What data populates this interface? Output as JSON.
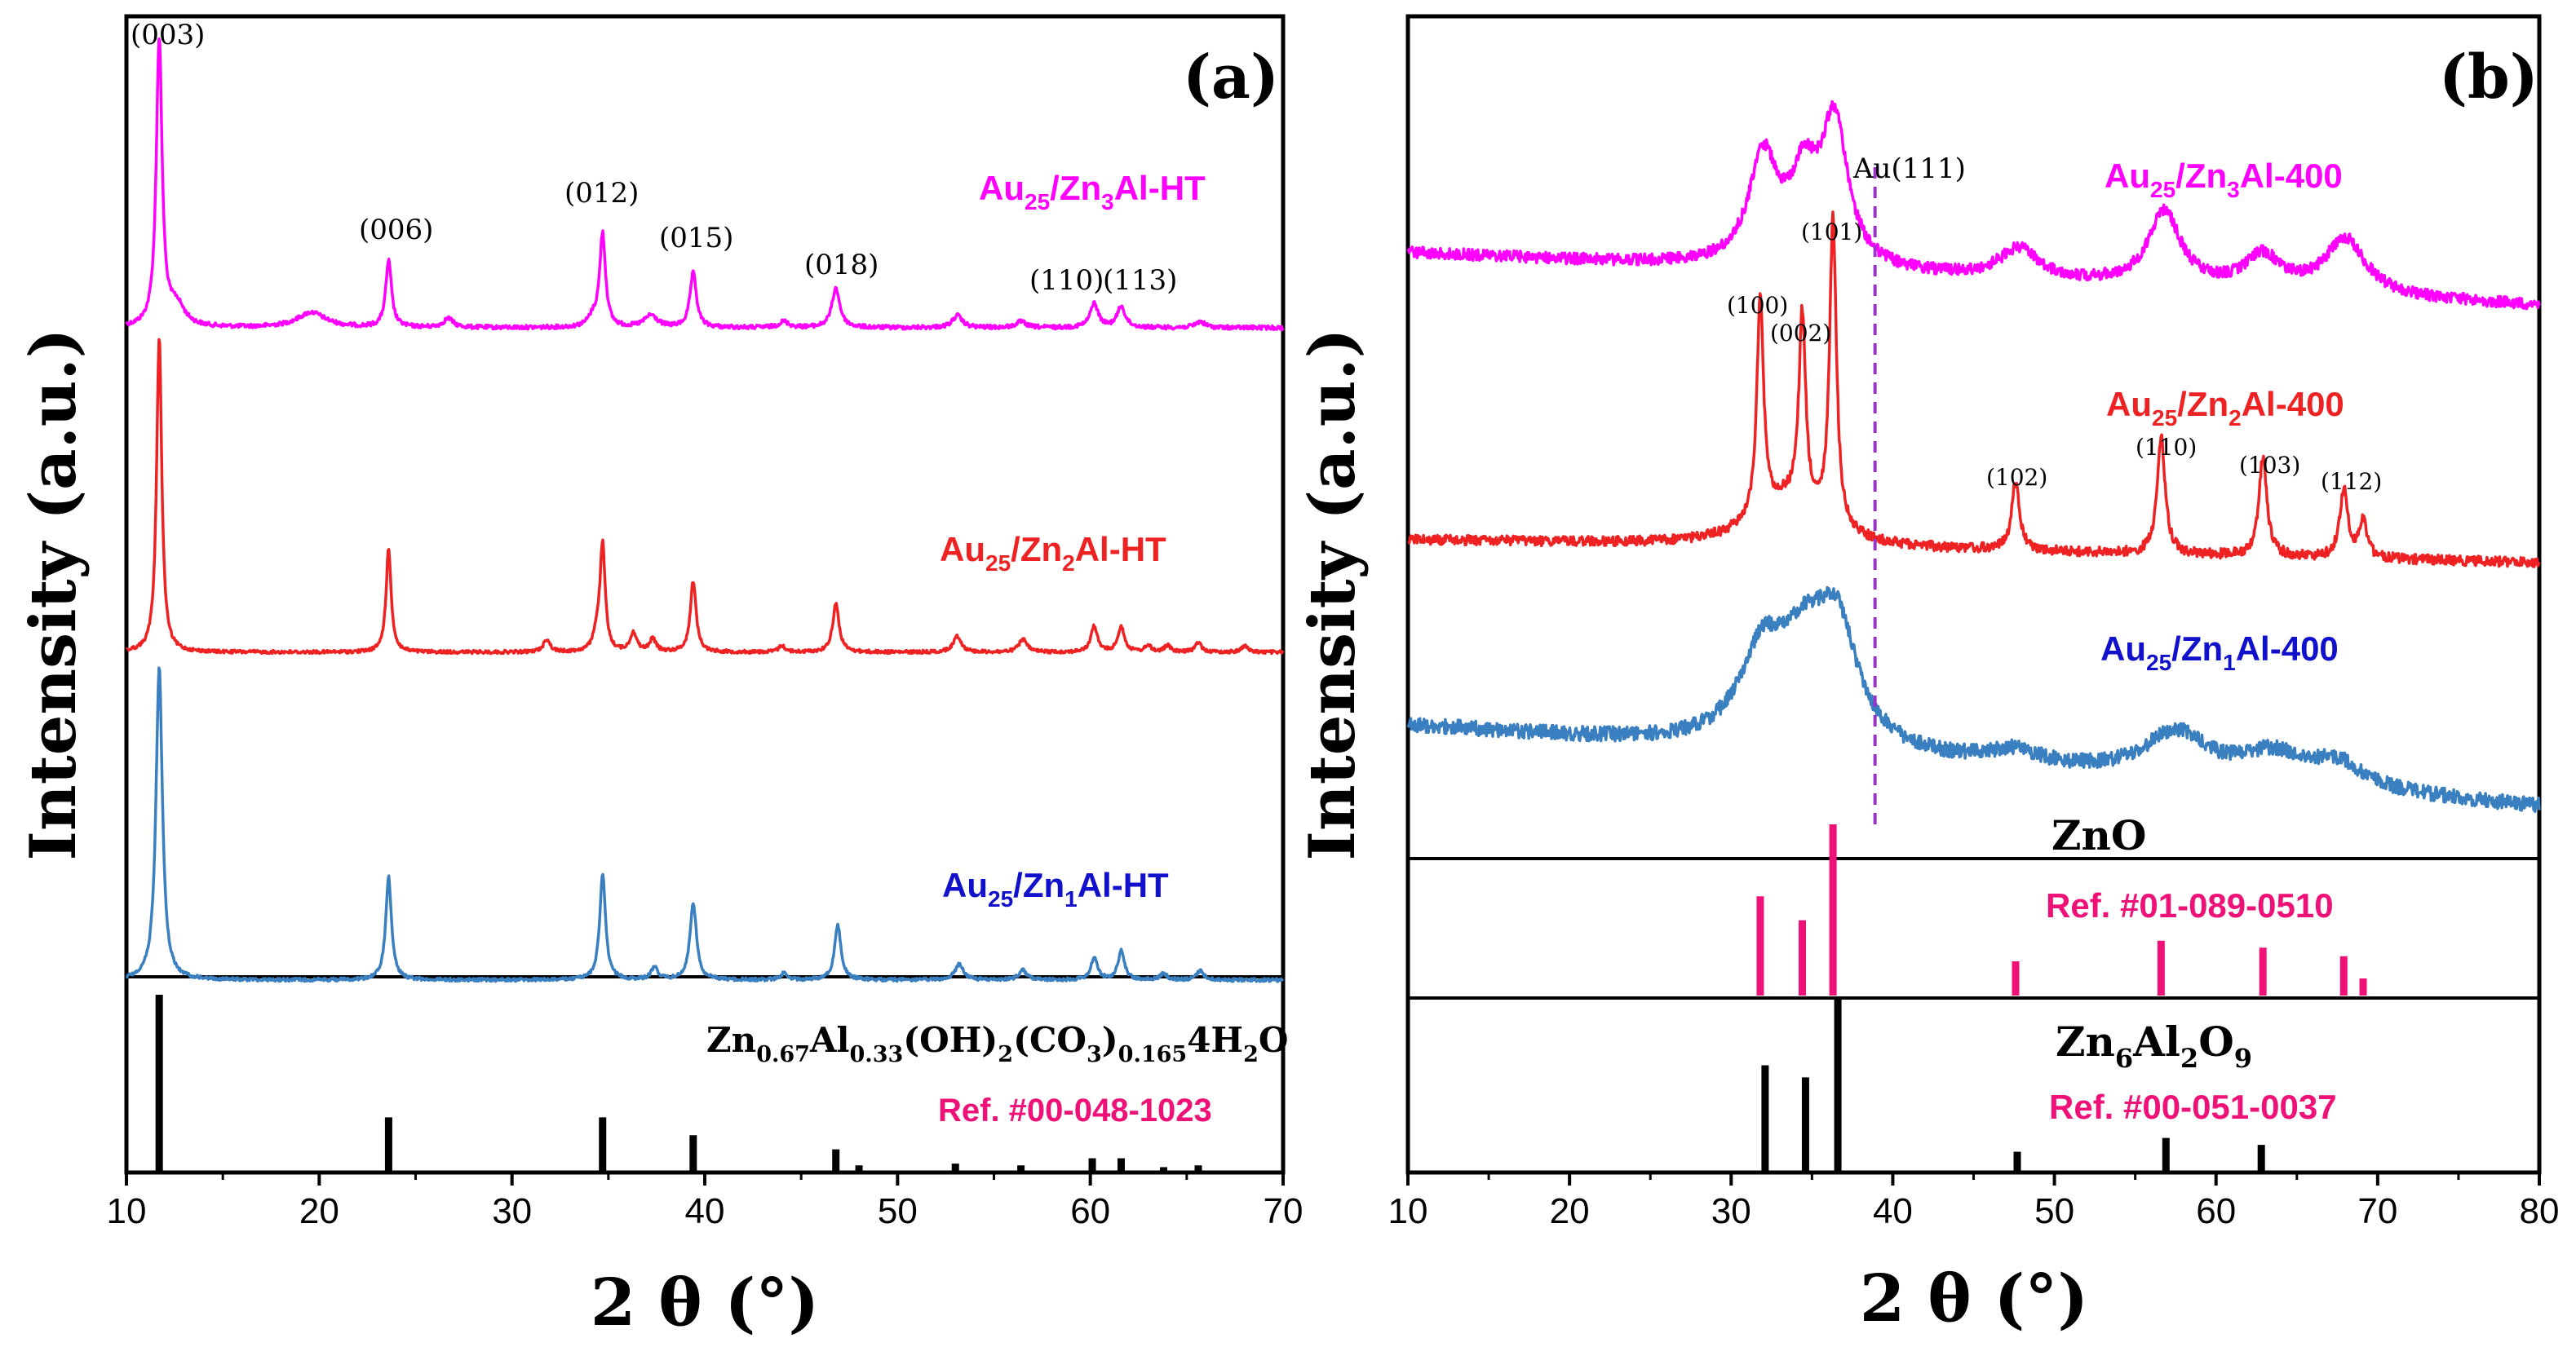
{
  "chart_data": [
    {
      "type": "line",
      "panel": "(a)",
      "xlabel": "2 θ (°)",
      "ylabel": "Intensity (a.u.)",
      "xlim": [
        10,
        70
      ],
      "xticks": [
        10,
        20,
        30,
        40,
        50,
        60,
        70
      ],
      "series": [
        {
          "name": "Au25/Zn3Al-HT",
          "color": "#ff00ff",
          "peaks": [
            {
              "x": 11.7,
              "h": 0.95,
              "w": 0.18
            },
            {
              "x": 12.6,
              "h": 0.07,
              "w": 0.5
            },
            {
              "x": 19.6,
              "h": 0.05,
              "w": 0.9
            },
            {
              "x": 23.6,
              "h": 0.22,
              "w": 0.18
            },
            {
              "x": 26.7,
              "h": 0.03,
              "w": 0.3
            },
            {
              "x": 34.2,
              "h": 0.03,
              "w": 0.3
            },
            {
              "x": 34.7,
              "h": 0.31,
              "w": 0.18
            },
            {
              "x": 37.2,
              "h": 0.04,
              "w": 0.4
            },
            {
              "x": 39.4,
              "h": 0.18,
              "w": 0.2
            },
            {
              "x": 44.1,
              "h": 0.02,
              "w": 0.3
            },
            {
              "x": 46.8,
              "h": 0.13,
              "w": 0.25
            },
            {
              "x": 53.1,
              "h": 0.04,
              "w": 0.3
            },
            {
              "x": 56.4,
              "h": 0.02,
              "w": 0.3
            },
            {
              "x": 60.2,
              "h": 0.08,
              "w": 0.25
            },
            {
              "x": 61.6,
              "h": 0.07,
              "w": 0.25
            },
            {
              "x": 65.7,
              "h": 0.02,
              "w": 0.3
            }
          ]
        },
        {
          "name": "Au25/Zn2Al-HT",
          "color": "#ee2222",
          "peaks": [
            {
              "x": 11.7,
              "h": 0.98,
              "w": 0.16
            },
            {
              "x": 23.6,
              "h": 0.32,
              "w": 0.16
            },
            {
              "x": 31.8,
              "h": 0.04,
              "w": 0.2
            },
            {
              "x": 34.4,
              "h": 0.05,
              "w": 0.2
            },
            {
              "x": 34.7,
              "h": 0.33,
              "w": 0.16
            },
            {
              "x": 36.3,
              "h": 0.06,
              "w": 0.2
            },
            {
              "x": 37.3,
              "h": 0.04,
              "w": 0.2
            },
            {
              "x": 39.4,
              "h": 0.22,
              "w": 0.18
            },
            {
              "x": 44.0,
              "h": 0.02,
              "w": 0.2
            },
            {
              "x": 46.8,
              "h": 0.15,
              "w": 0.2
            },
            {
              "x": 53.1,
              "h": 0.05,
              "w": 0.25
            },
            {
              "x": 56.5,
              "h": 0.04,
              "w": 0.25
            },
            {
              "x": 60.2,
              "h": 0.08,
              "w": 0.2
            },
            {
              "x": 61.6,
              "h": 0.08,
              "w": 0.2
            },
            {
              "x": 63.0,
              "h": 0.02,
              "w": 0.2
            },
            {
              "x": 64.0,
              "h": 0.02,
              "w": 0.2
            },
            {
              "x": 65.6,
              "h": 0.03,
              "w": 0.2
            },
            {
              "x": 68.0,
              "h": 0.02,
              "w": 0.2
            }
          ]
        },
        {
          "name": "Au25/Zn1Al-HT",
          "color": "#3a7fbf",
          "peaks": [
            {
              "x": 11.7,
              "h": 0.97,
              "w": 0.2
            },
            {
              "x": 23.6,
              "h": 0.32,
              "w": 0.18
            },
            {
              "x": 34.7,
              "h": 0.33,
              "w": 0.18
            },
            {
              "x": 37.4,
              "h": 0.04,
              "w": 0.2
            },
            {
              "x": 39.4,
              "h": 0.24,
              "w": 0.2
            },
            {
              "x": 44.1,
              "h": 0.02,
              "w": 0.2
            },
            {
              "x": 46.9,
              "h": 0.17,
              "w": 0.2
            },
            {
              "x": 53.2,
              "h": 0.05,
              "w": 0.25
            },
            {
              "x": 56.5,
              "h": 0.03,
              "w": 0.25
            },
            {
              "x": 60.2,
              "h": 0.07,
              "w": 0.2
            },
            {
              "x": 61.6,
              "h": 0.09,
              "w": 0.2
            },
            {
              "x": 63.8,
              "h": 0.02,
              "w": 0.2
            },
            {
              "x": 65.7,
              "h": 0.03,
              "w": 0.2
            }
          ]
        }
      ],
      "reference": {
        "name": "Zn0.67Al0.33(OH)2(CO3)0.1654H2O",
        "ref": "Ref. #00-048-1023",
        "sticks": [
          {
            "x": 11.7,
            "h": 1.0
          },
          {
            "x": 23.6,
            "h": 0.31
          },
          {
            "x": 34.7,
            "h": 0.31
          },
          {
            "x": 39.4,
            "h": 0.21
          },
          {
            "x": 46.8,
            "h": 0.13
          },
          {
            "x": 48.0,
            "h": 0.04
          },
          {
            "x": 53.0,
            "h": 0.05
          },
          {
            "x": 56.4,
            "h": 0.04
          },
          {
            "x": 60.1,
            "h": 0.08
          },
          {
            "x": 61.6,
            "h": 0.08
          },
          {
            "x": 63.8,
            "h": 0.03
          },
          {
            "x": 65.6,
            "h": 0.04
          }
        ]
      },
      "annotations": [
        "(003)",
        "(006)",
        "(012)",
        "(015)",
        "(018)",
        "(110)",
        "(113)"
      ]
    },
    {
      "type": "line",
      "panel": "(b)",
      "xlabel": "2 θ (°)",
      "ylabel": "Intensity (a.u.)",
      "xlim": [
        10,
        80
      ],
      "xticks": [
        10,
        20,
        30,
        40,
        50,
        60,
        70,
        80
      ],
      "marker_line": {
        "x": 38.9,
        "label": "Au(111)"
      },
      "series": [
        {
          "name": "Au25/Zn3Al-400",
          "color": "#ff00ff",
          "peaks": [
            {
              "x": 32.0,
              "h": 0.57,
              "w": 1.1
            },
            {
              "x": 34.5,
              "h": 0.42,
              "w": 1.0
            },
            {
              "x": 36.4,
              "h": 0.76,
              "w": 1.0
            },
            {
              "x": 47.8,
              "h": 0.16,
              "w": 1.5
            },
            {
              "x": 56.8,
              "h": 0.4,
              "w": 1.2
            },
            {
              "x": 62.9,
              "h": 0.18,
              "w": 1.4
            },
            {
              "x": 68.0,
              "h": 0.3,
              "w": 1.5
            }
          ]
        },
        {
          "name": "Au25/Zn2Al-400",
          "color": "#ee2222",
          "peaks": [
            {
              "x": 31.8,
              "h": 0.7,
              "w": 0.25
            },
            {
              "x": 34.4,
              "h": 0.62,
              "w": 0.25
            },
            {
              "x": 36.3,
              "h": 1.0,
              "w": 0.25
            },
            {
              "x": 33.5,
              "h": 0.15,
              "w": 2.5
            },
            {
              "x": 47.6,
              "h": 0.22,
              "w": 0.3
            },
            {
              "x": 56.6,
              "h": 0.38,
              "w": 0.3
            },
            {
              "x": 62.9,
              "h": 0.32,
              "w": 0.3
            },
            {
              "x": 67.9,
              "h": 0.22,
              "w": 0.3
            },
            {
              "x": 69.1,
              "h": 0.12,
              "w": 0.3
            }
          ]
        },
        {
          "name": "Au25/Zn1Al-400",
          "color": "#3a7fbf",
          "peaks": [
            {
              "x": 32.0,
              "h": 0.45,
              "w": 1.8
            },
            {
              "x": 34.5,
              "h": 0.35,
              "w": 1.5
            },
            {
              "x": 36.5,
              "h": 0.6,
              "w": 1.6
            },
            {
              "x": 47.5,
              "h": 0.07,
              "w": 2.0
            },
            {
              "x": 57.5,
              "h": 0.22,
              "w": 2.4
            },
            {
              "x": 63.5,
              "h": 0.14,
              "w": 2.5
            },
            {
              "x": 67.5,
              "h": 0.12,
              "w": 2.0
            }
          ]
        }
      ],
      "reference": [
        {
          "name": "ZnO",
          "ref": "Ref. #01-089-0510",
          "color": "#ee1177",
          "sticks": [
            {
              "x": 31.8,
              "h": 0.58
            },
            {
              "x": 34.4,
              "h": 0.44
            },
            {
              "x": 36.3,
              "h": 1.0
            },
            {
              "x": 47.6,
              "h": 0.2
            },
            {
              "x": 56.6,
              "h": 0.32
            },
            {
              "x": 62.9,
              "h": 0.28
            },
            {
              "x": 67.9,
              "h": 0.23
            },
            {
              "x": 69.1,
              "h": 0.1
            }
          ]
        },
        {
          "name": "Zn6Al2O9",
          "ref": "Ref. #00-051-0037",
          "color": "#000000",
          "sticks": [
            {
              "x": 32.1,
              "h": 0.62
            },
            {
              "x": 34.6,
              "h": 0.55
            },
            {
              "x": 36.6,
              "h": 1.0
            },
            {
              "x": 47.7,
              "h": 0.12
            },
            {
              "x": 56.9,
              "h": 0.2
            },
            {
              "x": 62.8,
              "h": 0.16
            }
          ]
        }
      ],
      "annotations": [
        "(100)",
        "(002)",
        "(101)",
        "(102)",
        "(110)",
        "(103)",
        "(112)"
      ]
    }
  ],
  "labels": {
    "a_panel": "(a)",
    "b_panel": "(b)",
    "ylabel": "Intensity (a.u.)",
    "xlabel_2": "2 θ (°)",
    "a_s1_main": "Au",
    "a_s1_sub1": "25",
    "a_s1_mid": "/Zn",
    "a_s1_sub2": "3",
    "a_s1_tail": "Al-HT",
    "a_s2_main": "Au",
    "a_s2_sub1": "25",
    "a_s2_mid": "/Zn",
    "a_s2_sub2": "2",
    "a_s2_tail": "Al-HT",
    "a_s3_main": "Au",
    "a_s3_sub1": "25",
    "a_s3_mid": "/Zn",
    "a_s3_sub2": "1",
    "a_s3_tail": "Al-HT",
    "b_s1_main": "Au",
    "b_s1_sub1": "25",
    "b_s1_mid": "/Zn",
    "b_s1_sub2": "3",
    "b_s1_tail": "Al-400",
    "b_s2_main": "Au",
    "b_s2_sub1": "25",
    "b_s2_mid": "/Zn",
    "b_s2_sub2": "2",
    "b_s2_tail": "Al-400",
    "b_s3_main": "Au",
    "b_s3_sub1": "25",
    "b_s3_mid": "/Zn",
    "b_s3_sub2": "1",
    "b_s3_tail": "Al-400",
    "ref_a_f1": "Zn",
    "ref_a_f1s": "0.67",
    "ref_a_f2": "Al",
    "ref_a_f2s": "0.33",
    "ref_a_f3": "(OH)",
    "ref_a_f3s": "2",
    "ref_a_f4": "(CO",
    "ref_a_f4s": "3",
    "ref_a_f5": ")",
    "ref_a_f5s": "0.165",
    "ref_a_f6": "4H",
    "ref_a_f6s": "2",
    "ref_a_f7": "O",
    "ref_a_num": "Ref. #00-048-1023",
    "zno": "ZnO",
    "ref_zno_num": "Ref. #01-089-0510",
    "znal_f1": "Zn",
    "znal_f1s": "6",
    "znal_f2": "Al",
    "znal_f2s": "2",
    "znal_f3": "O",
    "znal_f3s": "9",
    "ref_znal_num": "Ref. #00-051-0037",
    "au111": "Au(111)",
    "a_hkl_003": "(003)",
    "a_hkl_006": "(006)",
    "a_hkl_012": "(012)",
    "a_hkl_015": "(015)",
    "a_hkl_018": "(018)",
    "a_hkl_110": "(110)",
    "a_hkl_113": "(113)",
    "b_hkl_100": "(100)",
    "b_hkl_002": "(002)",
    "b_hkl_101": "(101)",
    "b_hkl_102": "(102)",
    "b_hkl_110": "(110)",
    "b_hkl_103": "(103)",
    "b_hkl_112": "(112)"
  }
}
